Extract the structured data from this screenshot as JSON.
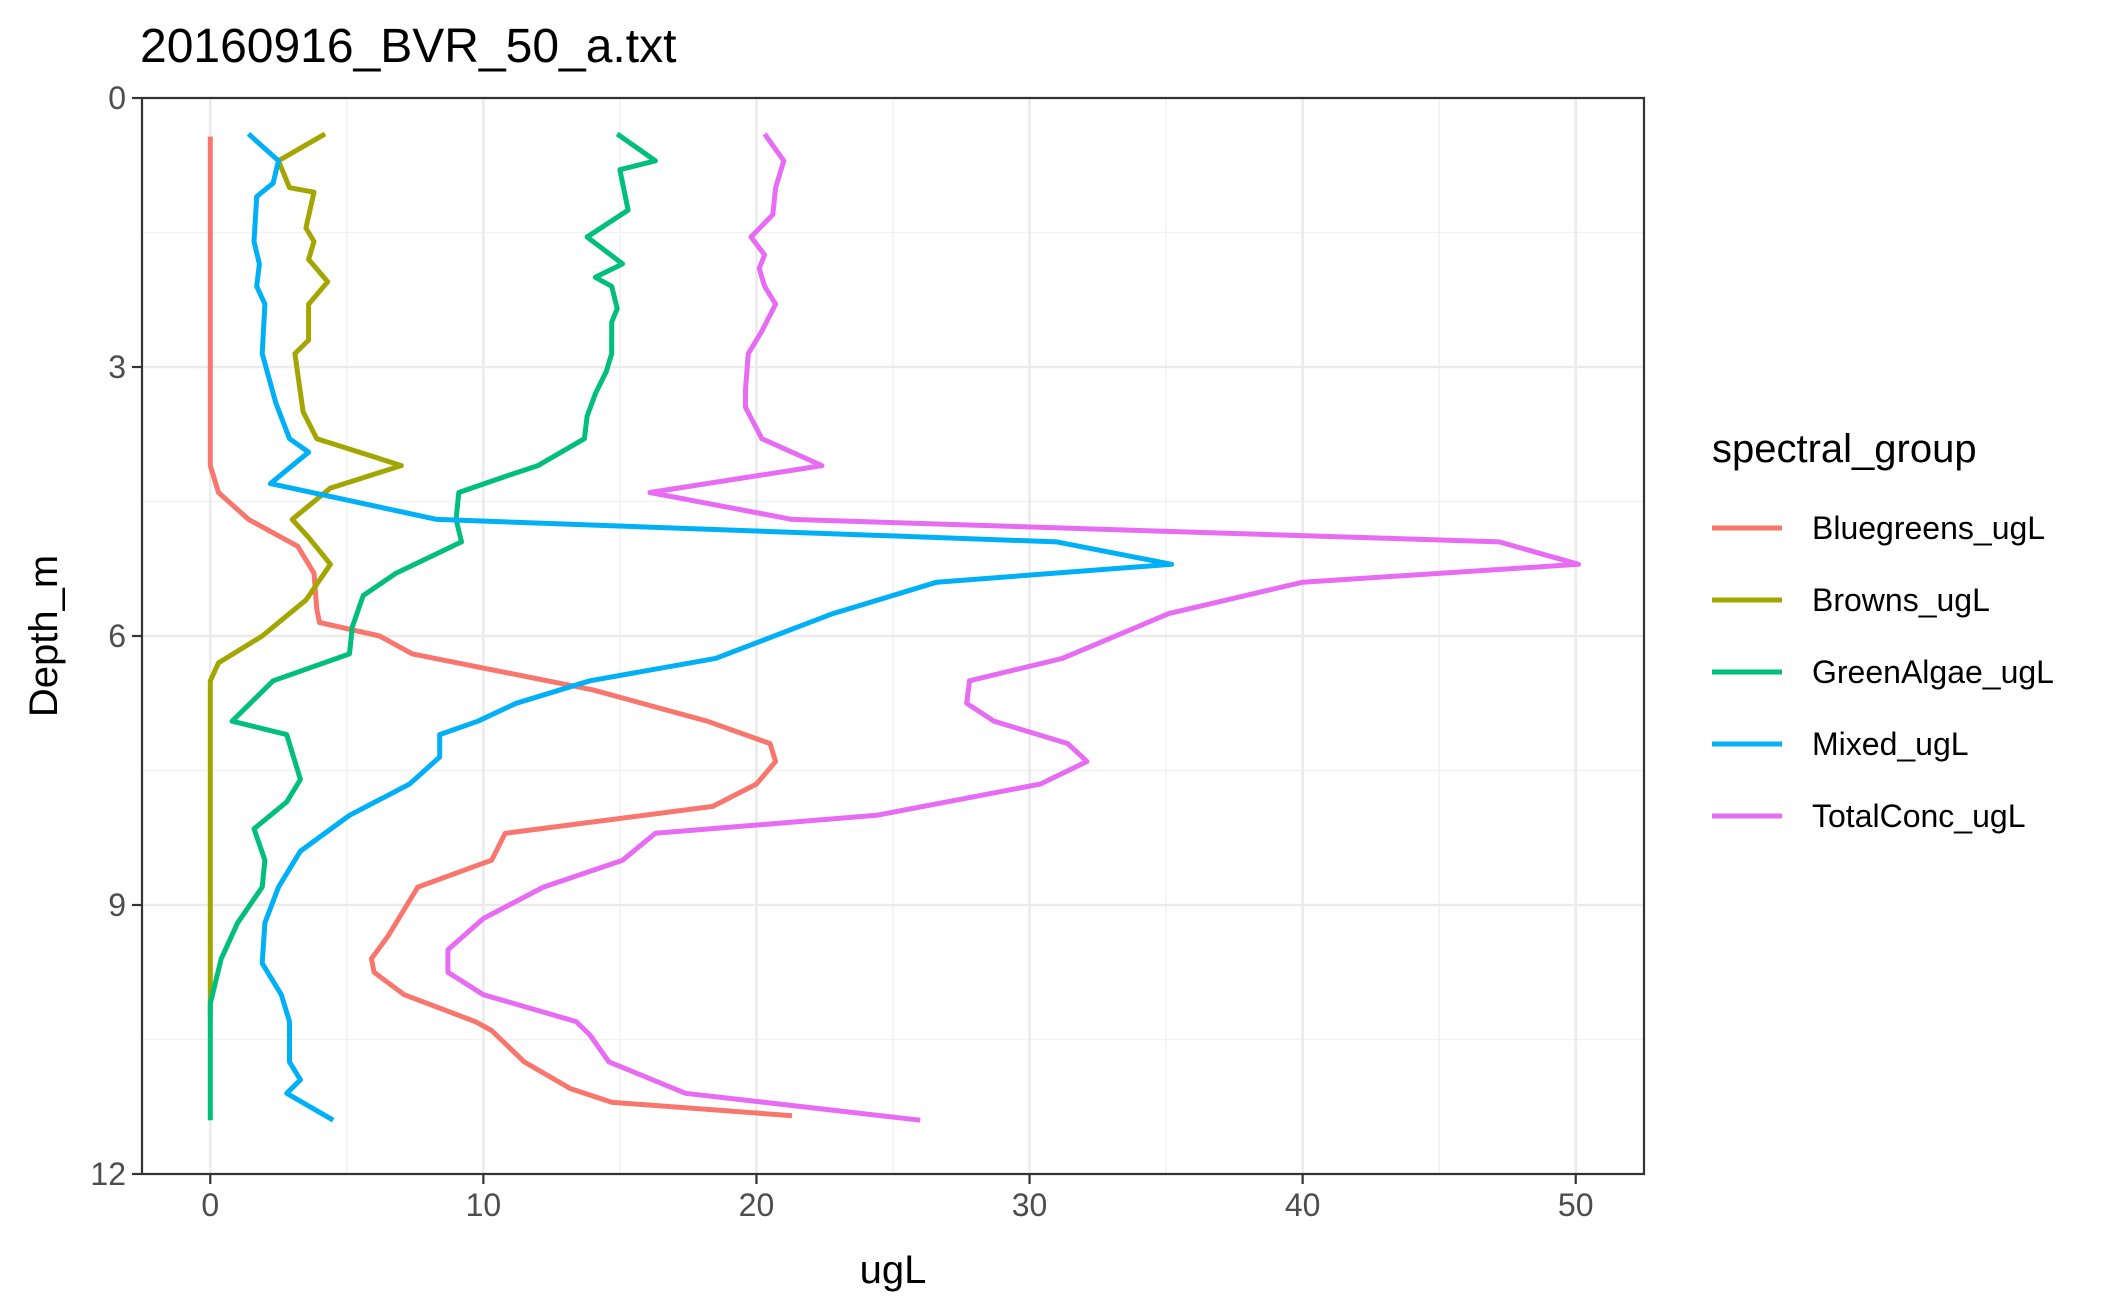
{
  "chart_data": {
    "type": "line",
    "title": "20160916_BVR_50_a.txt",
    "xlabel": "ugL",
    "ylabel": "Depth_m",
    "xlim": [
      -2.5,
      52.5
    ],
    "ylim": [
      0,
      12
    ],
    "y_reversed": true,
    "x_ticks": [
      0,
      10,
      20,
      30,
      40,
      50
    ],
    "x_tick_labels": [
      "0",
      "10",
      "20",
      "30",
      "40",
      "50"
    ],
    "y_ticks": [
      0,
      3,
      6,
      9,
      12
    ],
    "y_tick_labels": [
      "0",
      "3",
      "6",
      "9",
      "12"
    ],
    "grid": true,
    "legend": {
      "title": "spectral_group",
      "position": "right"
    },
    "series": [
      {
        "name": "Bluegreens_ugL",
        "color": "#F8766D",
        "points": [
          [
            0,
            0.43
          ],
          [
            0,
            4.1
          ],
          [
            0.3,
            4.4
          ],
          [
            1.4,
            4.7
          ],
          [
            3.2,
            5.0
          ],
          [
            3.8,
            5.3
          ],
          [
            3.9,
            5.7
          ],
          [
            4.0,
            5.85
          ],
          [
            6.2,
            6.0
          ],
          [
            7.4,
            6.2
          ],
          [
            14.0,
            6.6
          ],
          [
            18.2,
            6.95
          ],
          [
            20.5,
            7.2
          ],
          [
            20.7,
            7.4
          ],
          [
            20.0,
            7.65
          ],
          [
            18.4,
            7.9
          ],
          [
            10.8,
            8.2
          ],
          [
            10.3,
            8.5
          ],
          [
            7.6,
            8.8
          ],
          [
            7.1,
            9.05
          ],
          [
            6.5,
            9.35
          ],
          [
            5.9,
            9.6
          ],
          [
            6.0,
            9.75
          ],
          [
            7.1,
            10.0
          ],
          [
            9.7,
            10.3
          ],
          [
            10.3,
            10.4
          ],
          [
            11.5,
            10.75
          ],
          [
            13.2,
            11.05
          ],
          [
            14.7,
            11.2
          ],
          [
            21.3,
            11.35
          ]
        ]
      },
      {
        "name": "Browns_ugL",
        "color": "#A3A500",
        "points": [
          [
            4.2,
            0.4
          ],
          [
            2.5,
            0.7
          ],
          [
            2.9,
            1.0
          ],
          [
            3.8,
            1.05
          ],
          [
            3.5,
            1.45
          ],
          [
            3.8,
            1.6
          ],
          [
            3.6,
            1.8
          ],
          [
            4.3,
            2.05
          ],
          [
            3.6,
            2.3
          ],
          [
            3.6,
            2.7
          ],
          [
            3.1,
            2.85
          ],
          [
            3.4,
            3.5
          ],
          [
            3.9,
            3.8
          ],
          [
            7.0,
            4.1
          ],
          [
            4.4,
            4.35
          ],
          [
            3.0,
            4.7
          ],
          [
            3.6,
            4.9
          ],
          [
            4.0,
            5.05
          ],
          [
            4.4,
            5.2
          ],
          [
            3.5,
            5.6
          ],
          [
            1.9,
            6.0
          ],
          [
            0.3,
            6.3
          ],
          [
            0,
            6.5
          ],
          [
            0,
            10.25
          ]
        ]
      },
      {
        "name": "GreenAlgae_ugL",
        "color": "#00BF7D",
        "points": [
          [
            14.9,
            0.4
          ],
          [
            16.3,
            0.7
          ],
          [
            15.0,
            0.8
          ],
          [
            15.3,
            1.25
          ],
          [
            13.8,
            1.55
          ],
          [
            15.1,
            1.85
          ],
          [
            14.1,
            2.0
          ],
          [
            14.7,
            2.1
          ],
          [
            14.9,
            2.35
          ],
          [
            14.7,
            2.5
          ],
          [
            14.7,
            2.85
          ],
          [
            14.5,
            3.05
          ],
          [
            14.1,
            3.3
          ],
          [
            13.8,
            3.55
          ],
          [
            13.7,
            3.8
          ],
          [
            12.0,
            4.1
          ],
          [
            11.0,
            4.2
          ],
          [
            9.1,
            4.4
          ],
          [
            9.0,
            4.7
          ],
          [
            9.2,
            4.95
          ],
          [
            6.8,
            5.3
          ],
          [
            5.6,
            5.55
          ],
          [
            5.2,
            5.9
          ],
          [
            5.1,
            6.2
          ],
          [
            2.3,
            6.5
          ],
          [
            0.8,
            6.95
          ],
          [
            2.8,
            7.1
          ],
          [
            3.3,
            7.6
          ],
          [
            2.8,
            7.85
          ],
          [
            1.6,
            8.15
          ],
          [
            2.0,
            8.5
          ],
          [
            1.9,
            8.8
          ],
          [
            1.0,
            9.2
          ],
          [
            0.4,
            9.6
          ],
          [
            0,
            10.1
          ],
          [
            0,
            11.4
          ]
        ]
      },
      {
        "name": "Mixed_ugL",
        "color": "#00B0F6",
        "points": [
          [
            1.4,
            0.4
          ],
          [
            2.5,
            0.7
          ],
          [
            2.3,
            0.95
          ],
          [
            1.7,
            1.1
          ],
          [
            1.6,
            1.6
          ],
          [
            1.8,
            1.85
          ],
          [
            1.7,
            2.1
          ],
          [
            2.0,
            2.3
          ],
          [
            1.9,
            2.85
          ],
          [
            2.4,
            3.4
          ],
          [
            2.9,
            3.8
          ],
          [
            3.6,
            3.95
          ],
          [
            2.2,
            4.3
          ],
          [
            8.3,
            4.7
          ],
          [
            31.0,
            4.95
          ],
          [
            35.2,
            5.2
          ],
          [
            26.6,
            5.4
          ],
          [
            22.8,
            5.75
          ],
          [
            18.5,
            6.25
          ],
          [
            13.9,
            6.5
          ],
          [
            11.2,
            6.75
          ],
          [
            9.8,
            6.95
          ],
          [
            8.4,
            7.1
          ],
          [
            8.4,
            7.35
          ],
          [
            7.3,
            7.65
          ],
          [
            5.1,
            8.0
          ],
          [
            3.3,
            8.4
          ],
          [
            2.5,
            8.8
          ],
          [
            2.0,
            9.2
          ],
          [
            1.9,
            9.65
          ],
          [
            2.6,
            10.0
          ],
          [
            2.9,
            10.3
          ],
          [
            2.9,
            10.75
          ],
          [
            3.3,
            10.95
          ],
          [
            2.8,
            11.1
          ],
          [
            4.5,
            11.4
          ]
        ]
      },
      {
        "name": "TotalConc_ugL",
        "color": "#E76BF3",
        "points": [
          [
            20.3,
            0.4
          ],
          [
            21.0,
            0.7
          ],
          [
            20.7,
            1.0
          ],
          [
            20.6,
            1.3
          ],
          [
            19.8,
            1.55
          ],
          [
            20.3,
            1.75
          ],
          [
            20.1,
            1.9
          ],
          [
            20.3,
            2.1
          ],
          [
            20.7,
            2.3
          ],
          [
            20.2,
            2.6
          ],
          [
            19.7,
            2.85
          ],
          [
            19.6,
            3.25
          ],
          [
            19.6,
            3.45
          ],
          [
            20.2,
            3.8
          ],
          [
            22.4,
            4.1
          ],
          [
            16.1,
            4.4
          ],
          [
            21.3,
            4.7
          ],
          [
            47.2,
            4.95
          ],
          [
            50.1,
            5.2
          ],
          [
            40.0,
            5.4
          ],
          [
            35.1,
            5.75
          ],
          [
            31.2,
            6.25
          ],
          [
            27.8,
            6.5
          ],
          [
            27.7,
            6.75
          ],
          [
            28.7,
            6.95
          ],
          [
            31.4,
            7.2
          ],
          [
            32.1,
            7.4
          ],
          [
            30.4,
            7.65
          ],
          [
            24.4,
            8.0
          ],
          [
            16.3,
            8.2
          ],
          [
            15.1,
            8.5
          ],
          [
            12.2,
            8.8
          ],
          [
            10.0,
            9.15
          ],
          [
            8.7,
            9.5
          ],
          [
            8.7,
            9.75
          ],
          [
            10.0,
            10.0
          ],
          [
            13.4,
            10.3
          ],
          [
            13.9,
            10.45
          ],
          [
            14.6,
            10.75
          ],
          [
            17.4,
            11.1
          ],
          [
            26.0,
            11.4
          ]
        ]
      }
    ]
  }
}
